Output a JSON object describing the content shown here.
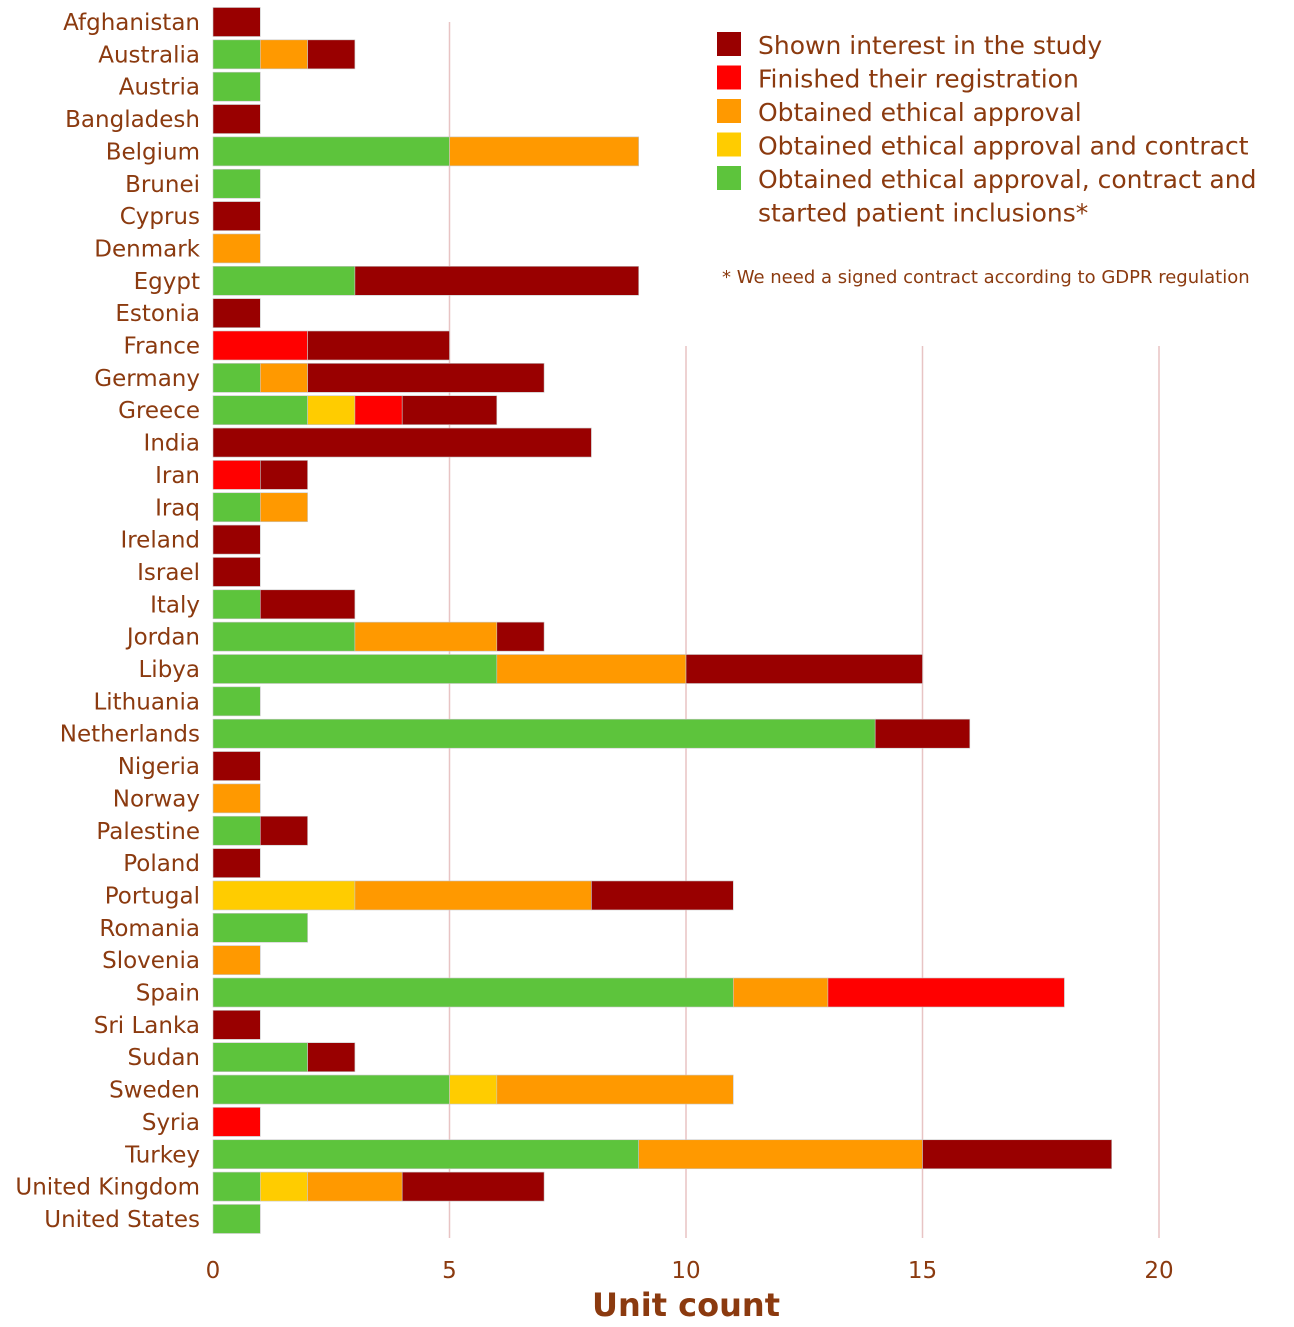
{
  "chart_data": {
    "type": "bar",
    "orientation": "horizontal",
    "stacked": true,
    "xlabel": "Unit count",
    "xlim": [
      0,
      20
    ],
    "xticks": [
      0,
      5,
      10,
      15,
      20
    ],
    "grid": true,
    "legend_position": "top-right",
    "categories": [
      "Afghanistan",
      "Australia",
      "Austria",
      "Bangladesh",
      "Belgium",
      "Brunei",
      "Cyprus",
      "Denmark",
      "Egypt",
      "Estonia",
      "France",
      "Germany",
      "Greece",
      "India",
      "Iran",
      "Iraq",
      "Ireland",
      "Israel",
      "Italy",
      "Jordan",
      "Libya",
      "Lithuania",
      "Netherlands",
      "Nigeria",
      "Norway",
      "Palestine",
      "Poland",
      "Portugal",
      "Romania",
      "Slovenia",
      "Spain",
      "Sri Lanka",
      "Sudan",
      "Sweden",
      "Syria",
      "Turkey",
      "United Kingdom",
      "United States"
    ],
    "series": [
      {
        "name": "Obtained ethical approval, contract and started patient inclusions*",
        "color": "#5DC43C",
        "values": [
          0,
          1,
          1,
          0,
          5,
          1,
          0,
          0,
          3,
          0,
          0,
          1,
          2,
          0,
          0,
          1,
          0,
          0,
          1,
          3,
          6,
          1,
          14,
          0,
          0,
          1,
          0,
          0,
          2,
          0,
          11,
          0,
          2,
          5,
          0,
          9,
          1,
          1
        ]
      },
      {
        "name": "Obtained ethical approval and contract",
        "color": "#FFCC00",
        "values": [
          0,
          0,
          0,
          0,
          0,
          0,
          0,
          0,
          0,
          0,
          0,
          0,
          1,
          0,
          0,
          0,
          0,
          0,
          0,
          0,
          0,
          0,
          0,
          0,
          0,
          0,
          0,
          3,
          0,
          0,
          0,
          0,
          0,
          1,
          0,
          0,
          1,
          0
        ]
      },
      {
        "name": "Obtained ethical approval",
        "color": "#FF9900",
        "values": [
          0,
          1,
          0,
          0,
          4,
          0,
          0,
          1,
          0,
          0,
          0,
          1,
          0,
          0,
          0,
          1,
          0,
          0,
          0,
          3,
          4,
          0,
          0,
          0,
          1,
          0,
          0,
          5,
          0,
          1,
          2,
          0,
          0,
          5,
          0,
          6,
          2,
          0
        ]
      },
      {
        "name": "Finished their registration",
        "color": "#FF0000",
        "values": [
          0,
          0,
          0,
          0,
          0,
          0,
          0,
          0,
          0,
          0,
          2,
          0,
          1,
          0,
          1,
          0,
          0,
          0,
          0,
          0,
          0,
          0,
          0,
          0,
          0,
          0,
          0,
          0,
          0,
          0,
          5,
          0,
          0,
          0,
          1,
          0,
          0,
          0
        ]
      },
      {
        "name": "Shown interest in the study",
        "color": "#990000",
        "values": [
          1,
          1,
          0,
          1,
          0,
          0,
          1,
          0,
          6,
          1,
          3,
          5,
          2,
          8,
          1,
          0,
          1,
          1,
          2,
          1,
          5,
          0,
          2,
          1,
          0,
          1,
          1,
          3,
          0,
          0,
          0,
          1,
          1,
          0,
          0,
          4,
          3,
          0
        ]
      }
    ],
    "legend_order": [
      4,
      3,
      2,
      1,
      0
    ],
    "legend_labels": [
      [
        "Shown interest in the study"
      ],
      [
        "Finished their registration"
      ],
      [
        "Obtained ethical approval"
      ],
      [
        "Obtained ethical approval and contract"
      ],
      [
        "Obtained ethical approval, contract and",
        "started patient inclusions*"
      ]
    ],
    "footnote": "* We need a signed contract according to GDPR regulation"
  }
}
